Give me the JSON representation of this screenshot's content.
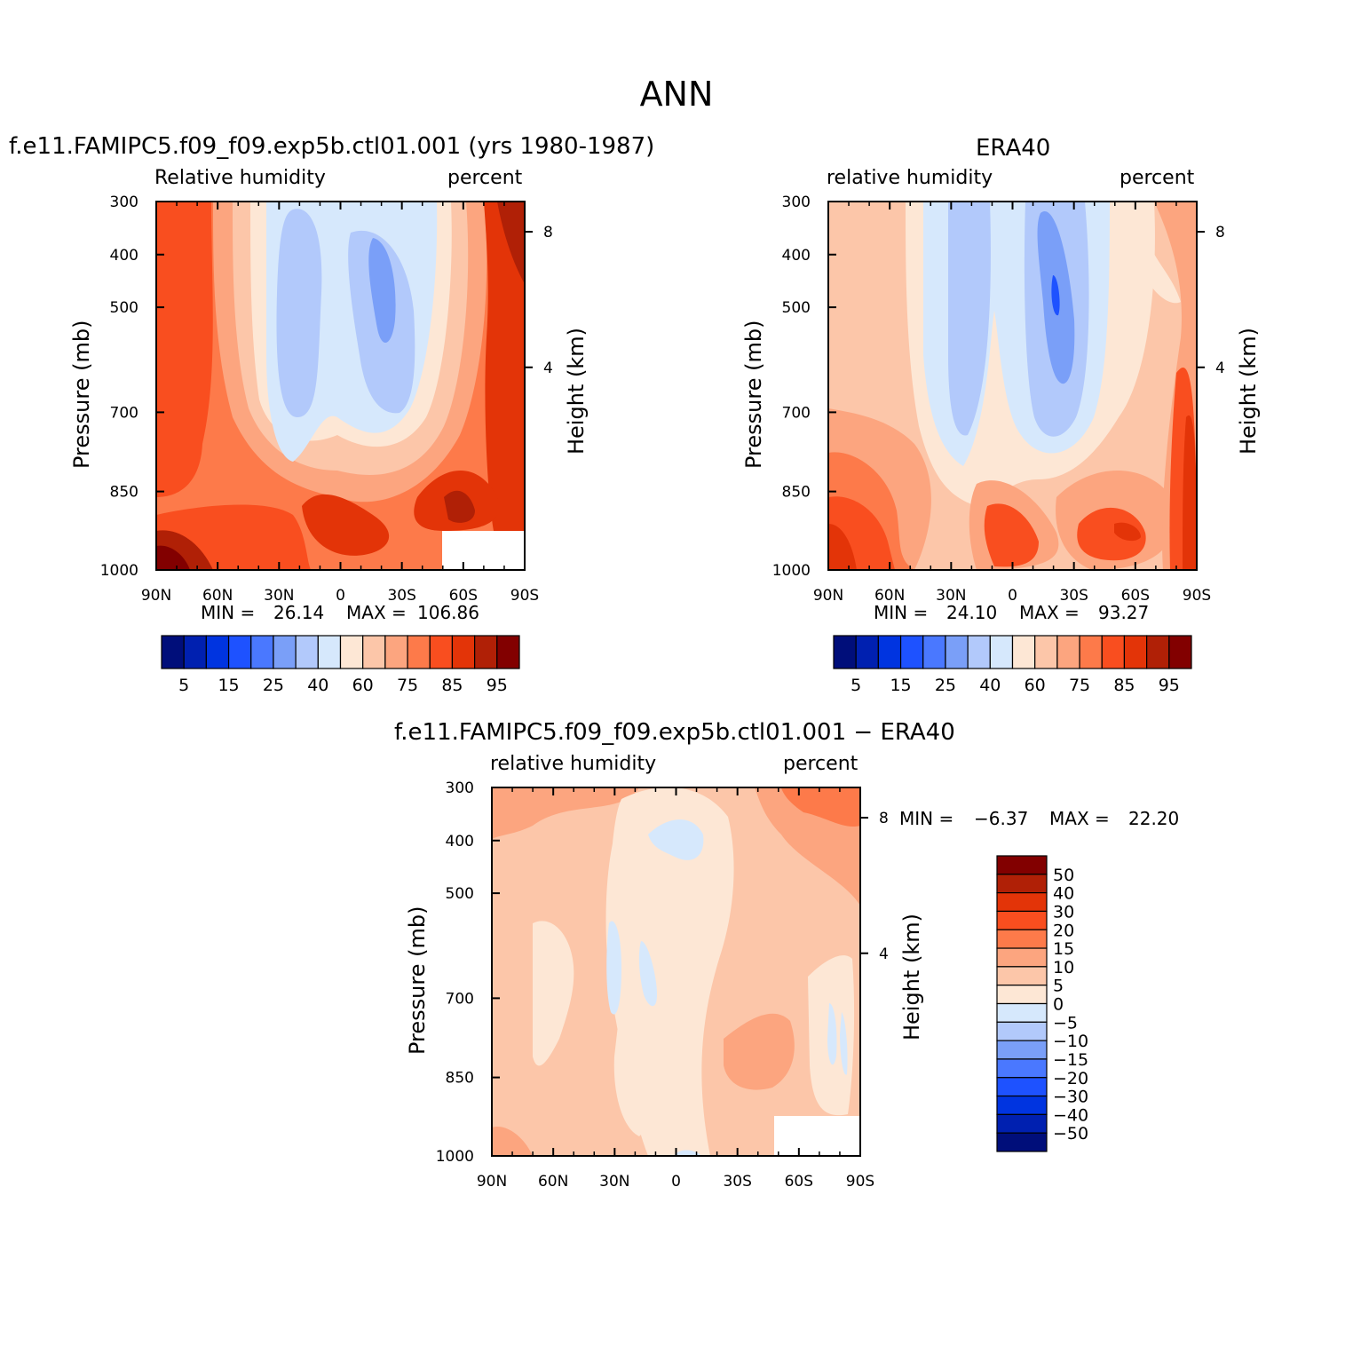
{
  "page": {
    "title": "ANN"
  },
  "colors": {
    "blue_to_red": [
      "#000e7a",
      "#0020b0",
      "#0034e0",
      "#1e52ff",
      "#4a78ff",
      "#7a9ff8",
      "#b2c9fb",
      "#d6e8fc",
      "#fde7d5",
      "#fcc6a9",
      "#fca57f",
      "#fd7a4a",
      "#f94e1f",
      "#e33408",
      "#b02006",
      "#820000"
    ]
  },
  "chart_data": [
    {
      "type": "contour",
      "title": "f.e11.FAMIPC5.f09_f09.exp5b.ctl01.001 (yrs 1980-1987)",
      "variable": "Relative humidity",
      "units": "percent",
      "ylabel": "Pressure (mb)",
      "ylabel_right": "Height (km)",
      "x_ticks": [
        "90N",
        "60N",
        "30N",
        "0",
        "30S",
        "60S",
        "90S"
      ],
      "y_ticks": [
        "300",
        "400",
        "500",
        "700",
        "850",
        "1000"
      ],
      "y_ticks_right": [
        "8",
        "4"
      ],
      "min_label": "MIN =",
      "min": "26.14",
      "max_label": "MAX =",
      "max": "106.86",
      "colorbar_labels": [
        "5",
        "15",
        "25",
        "40",
        "60",
        "75",
        "85",
        "95"
      ]
    },
    {
      "type": "contour",
      "title": "ERA40",
      "variable": "relative humidity",
      "units": "percent",
      "ylabel": "Pressure (mb)",
      "ylabel_right": "Height (km)",
      "x_ticks": [
        "90N",
        "60N",
        "30N",
        "0",
        "30S",
        "60S",
        "90S"
      ],
      "y_ticks": [
        "300",
        "400",
        "500",
        "700",
        "850",
        "1000"
      ],
      "y_ticks_right": [
        "8",
        "4"
      ],
      "min_label": "MIN =",
      "min": "24.10",
      "max_label": "MAX =",
      "max": "93.27",
      "colorbar_labels": [
        "5",
        "15",
        "25",
        "40",
        "60",
        "75",
        "85",
        "95"
      ]
    },
    {
      "type": "contour",
      "title": "f.e11.FAMIPC5.f09_f09.exp5b.ctl01.001 − ERA40",
      "variable": "relative humidity",
      "units": "percent",
      "ylabel": "Pressure (mb)",
      "ylabel_right": "Height (km)",
      "x_ticks": [
        "90N",
        "60N",
        "30N",
        "0",
        "30S",
        "60S",
        "90S"
      ],
      "y_ticks": [
        "300",
        "400",
        "500",
        "700",
        "850",
        "1000"
      ],
      "y_ticks_right": [
        "8",
        "4"
      ],
      "min_label": "MIN =",
      "min": "−6.37",
      "max_label": "MAX =",
      "max": "22.20",
      "colorbar_labels": [
        "50",
        "40",
        "30",
        "20",
        "15",
        "10",
        "5",
        "0",
        "−5",
        "−10",
        "−15",
        "−20",
        "−30",
        "−40",
        "−50"
      ]
    }
  ]
}
